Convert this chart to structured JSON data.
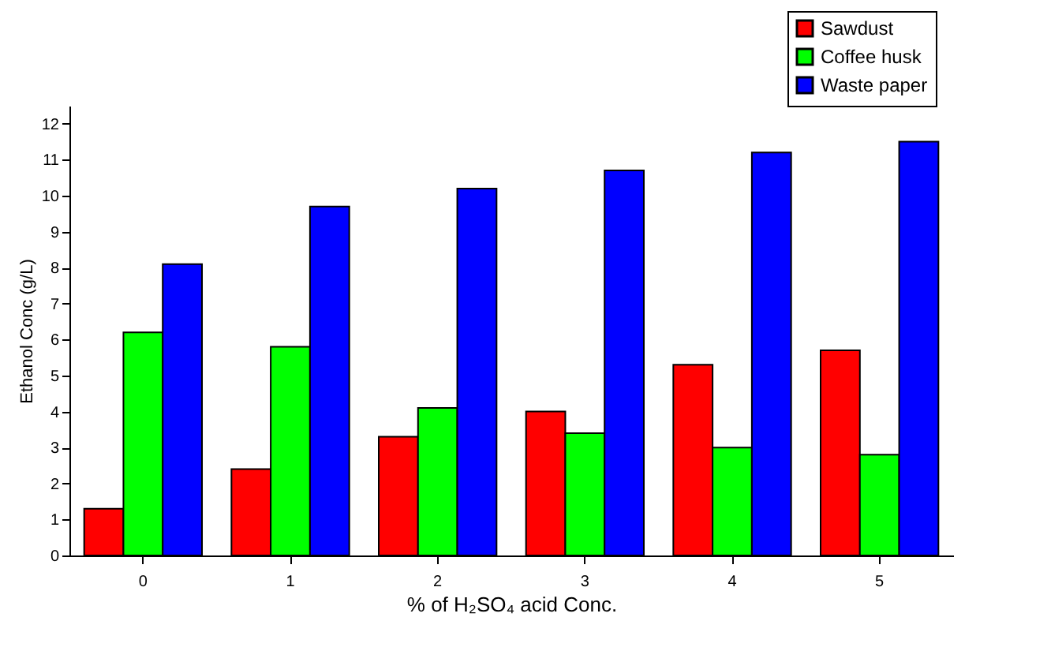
{
  "chart_data": {
    "type": "bar",
    "xlabel": "% of H₂SO₄ acid Conc.",
    "ylabel": "Ethanol Conc (g/L)",
    "categories": [
      "0",
      "1",
      "2",
      "3",
      "4",
      "5"
    ],
    "series": [
      {
        "name": "Sawdust",
        "color": "#ff0000",
        "values": [
          1.3,
          2.4,
          3.3,
          4.0,
          5.3,
          5.7
        ]
      },
      {
        "name": "Coffee husk",
        "color": "#00ff00",
        "values": [
          6.2,
          5.8,
          4.1,
          3.4,
          3.0,
          2.8
        ]
      },
      {
        "name": "Waste paper",
        "color": "#0000ff",
        "values": [
          8.1,
          9.7,
          10.2,
          10.7,
          11.2,
          11.5
        ]
      }
    ],
    "ylim": [
      0,
      12.5
    ],
    "yticks": [
      0,
      1,
      2,
      3,
      4,
      5,
      6,
      7,
      8,
      9,
      10,
      11,
      12
    ],
    "grid": false,
    "legend": "top right"
  }
}
